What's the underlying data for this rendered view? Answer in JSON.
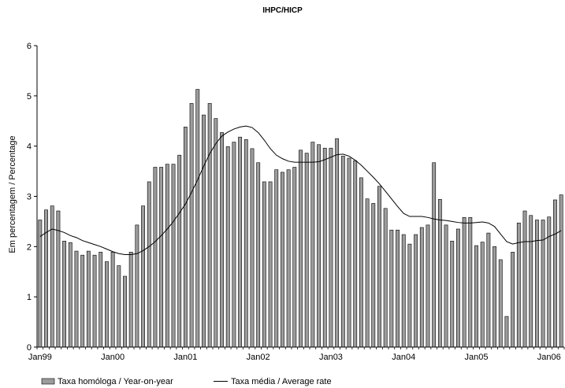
{
  "chart_data": {
    "type": "bar",
    "title": "IHPC/HICP",
    "ylabel": "Em percentagem / Percentage",
    "xlabel": "",
    "ylim": [
      0,
      6
    ],
    "yticks": [
      0,
      1,
      2,
      3,
      4,
      5,
      6
    ],
    "x_tick_labels": [
      "Jan99",
      "Jan00",
      "Jan01",
      "Jan02",
      "Jan03",
      "Jan04",
      "Jan05",
      "Jan06"
    ],
    "grid": false,
    "legend_position": "bottom-left",
    "series": [
      {
        "name": "Taxa homóloga / Year-on-year",
        "type": "bar",
        "color": "#9c9c9c",
        "values": [
          2.53,
          2.73,
          2.81,
          2.71,
          2.11,
          2.08,
          1.91,
          1.83,
          1.91,
          1.83,
          1.89,
          1.7,
          1.89,
          1.62,
          1.41,
          1.89,
          2.43,
          2.81,
          3.29,
          3.58,
          3.58,
          3.64,
          3.64,
          3.82,
          4.38,
          4.85,
          5.13,
          4.62,
          4.85,
          4.55,
          4.27,
          3.99,
          4.08,
          4.18,
          4.13,
          3.95,
          3.67,
          3.29,
          3.29,
          3.53,
          3.48,
          3.53,
          3.58,
          3.92,
          3.86,
          4.08,
          4.03,
          3.96,
          3.96,
          4.15,
          3.8,
          3.76,
          3.71,
          3.37,
          2.95,
          2.86,
          3.2,
          2.76,
          2.33,
          2.33,
          2.24,
          2.05,
          2.24,
          2.38,
          2.43,
          3.67,
          2.94,
          2.43,
          2.11,
          2.35,
          2.58,
          2.58,
          2.02,
          2.09,
          2.27,
          2.0,
          1.74,
          0.61,
          1.89,
          2.47,
          2.71,
          2.62,
          2.53,
          2.53,
          2.59,
          2.93,
          3.03
        ]
      },
      {
        "name": "Taxa média / Average rate",
        "type": "line",
        "color": "#000000",
        "values": [
          2.2,
          2.28,
          2.35,
          2.32,
          2.28,
          2.22,
          2.18,
          2.12,
          2.08,
          2.04,
          2.0,
          1.95,
          1.9,
          1.86,
          1.84,
          1.84,
          1.86,
          1.92,
          2.0,
          2.1,
          2.22,
          2.35,
          2.5,
          2.67,
          2.85,
          3.08,
          3.33,
          3.6,
          3.85,
          4.05,
          4.2,
          4.28,
          4.34,
          4.38,
          4.4,
          4.37,
          4.27,
          4.12,
          3.95,
          3.82,
          3.75,
          3.7,
          3.68,
          3.68,
          3.68,
          3.68,
          3.69,
          3.73,
          3.78,
          3.83,
          3.84,
          3.8,
          3.72,
          3.62,
          3.5,
          3.38,
          3.25,
          3.1,
          2.95,
          2.8,
          2.66,
          2.6,
          2.6,
          2.6,
          2.58,
          2.55,
          2.53,
          2.52,
          2.5,
          2.48,
          2.47,
          2.47,
          2.48,
          2.49,
          2.47,
          2.4,
          2.25,
          2.1,
          2.05,
          2.08,
          2.1,
          2.1,
          2.12,
          2.13,
          2.2,
          2.25,
          2.32
        ]
      }
    ]
  }
}
